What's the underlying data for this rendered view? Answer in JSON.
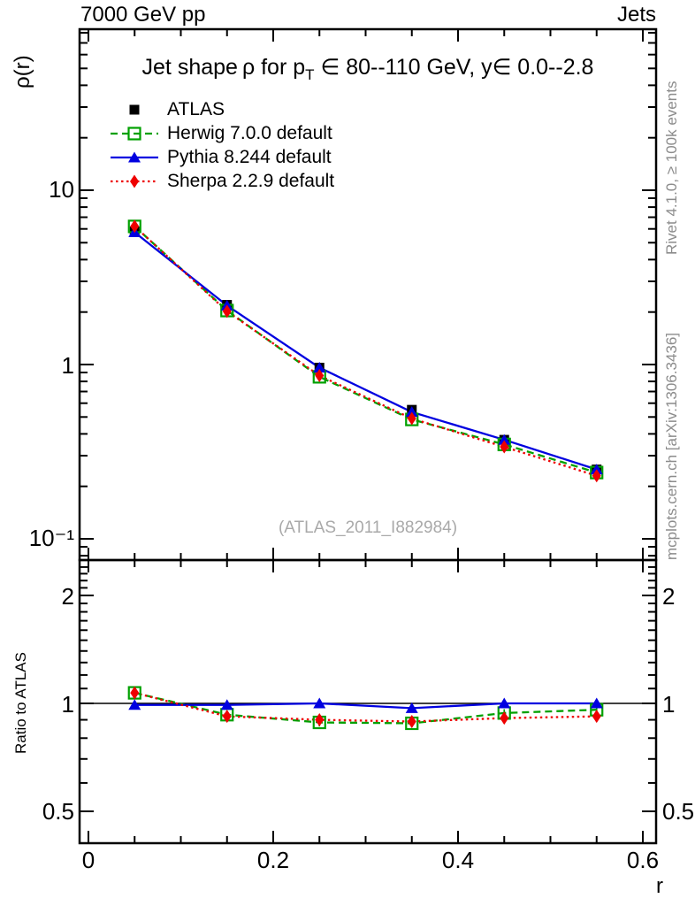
{
  "header": {
    "left": "7000 GeV pp",
    "right": "Jets"
  },
  "title": {
    "pre": "Jet shape ρ for p",
    "sub": "T",
    "post": " ∈ 80--110 GeV, y∈ 0.0--2.8"
  },
  "axes": {
    "main_ylabel": "ρ(r)",
    "main_yticks": [
      {
        "v": 10,
        "label": "10"
      },
      {
        "v": 1,
        "label": "1"
      },
      {
        "v": 0.1,
        "label": "10⁻¹"
      }
    ],
    "ratio_ylabel": "Ratio to ATLAS",
    "ratio_yticks": [
      {
        "v": 2,
        "label": "2"
      },
      {
        "v": 1,
        "label": "1"
      },
      {
        "v": 0.5,
        "label": "0.5"
      }
    ],
    "xlabel": "r",
    "xticks": [
      {
        "v": 0,
        "label": "0"
      },
      {
        "v": 0.2,
        "label": "0.2"
      },
      {
        "v": 0.4,
        "label": "0.4"
      },
      {
        "v": 0.6,
        "label": "0.6"
      }
    ]
  },
  "watermark": "(ATLAS_2011_I882984)",
  "side_notes": {
    "top": "Rivet 4.1.0, ≥ 100k events",
    "bottom": "mcplots.cern.ch [arXiv:1306.3436]"
  },
  "legend": [
    {
      "label": "ATLAS",
      "marker": "square-filled",
      "line": "none",
      "color": "#000000"
    },
    {
      "label": "Herwig 7.0.0 default",
      "marker": "square-open",
      "line": "dashed",
      "color": "#00a000"
    },
    {
      "label": "Pythia 8.244 default",
      "marker": "triangle-filled",
      "line": "solid",
      "color": "#0000e0"
    },
    {
      "label": "Sherpa 2.2.9 default",
      "marker": "diamond-filled",
      "line": "dotted",
      "color": "#ee0000"
    }
  ],
  "chart_data": [
    {
      "type": "line",
      "panel": "main",
      "title": "Jet shape ρ for p_T ∈ 80--110 GeV, y∈ 0.0--2.8",
      "xlabel": "r",
      "ylabel": "ρ(r)",
      "yscale": "log",
      "xlim": [
        0,
        0.614
      ],
      "ylim": [
        0.076,
        84
      ],
      "grid": false,
      "legend_position": "top-left",
      "x": [
        0.05,
        0.15,
        0.25,
        0.35,
        0.45,
        0.55
      ],
      "series": [
        {
          "name": "ATLAS",
          "values": [
            5.8,
            2.2,
            0.96,
            0.55,
            0.37,
            0.25
          ],
          "color": "#000000",
          "marker": "square-filled",
          "line": "none",
          "yerr_frac": 0.05
        },
        {
          "name": "Herwig 7.0.0 default",
          "values": [
            6.2,
            2.04,
            0.85,
            0.484,
            0.348,
            0.24
          ],
          "color": "#00a000",
          "marker": "square-open",
          "line": "dashed",
          "yerr_frac": 0.04
        },
        {
          "name": "Pythia 8.244 default",
          "values": [
            5.74,
            2.18,
            0.96,
            0.534,
            0.37,
            0.25
          ],
          "color": "#0000e0",
          "marker": "triangle-filled",
          "line": "solid",
          "yerr_frac": 0.04
        },
        {
          "name": "Sherpa 2.2.9 default",
          "values": [
            6.21,
            2.02,
            0.864,
            0.49,
            0.337,
            0.23
          ],
          "color": "#ee0000",
          "marker": "diamond-filled",
          "line": "dotted",
          "yerr_frac": 0.06
        }
      ]
    },
    {
      "type": "line",
      "panel": "ratio",
      "ylabel": "Ratio to ATLAS",
      "yscale": "log",
      "xlim": [
        0,
        0.614
      ],
      "ylim": [
        0.407,
        2.51
      ],
      "reference_line": 1,
      "x": [
        0.05,
        0.15,
        0.25,
        0.35,
        0.45,
        0.55
      ],
      "series": [
        {
          "name": "Herwig 7.0.0 default",
          "values": [
            1.07,
            0.93,
            0.885,
            0.88,
            0.94,
            0.96
          ],
          "color": "#00a000",
          "marker": "square-open",
          "line": "dashed",
          "yerr_frac": 0.025
        },
        {
          "name": "Pythia 8.244 default",
          "values": [
            0.99,
            0.99,
            1.0,
            0.97,
            1.0,
            1.0
          ],
          "color": "#0000e0",
          "marker": "triangle-filled",
          "line": "solid",
          "yerr_frac": 0.02
        },
        {
          "name": "Sherpa 2.2.9 default",
          "values": [
            1.07,
            0.92,
            0.9,
            0.89,
            0.91,
            0.92
          ],
          "color": "#ee0000",
          "marker": "diamond-filled",
          "line": "dotted",
          "yerr_frac": 0.035
        }
      ]
    }
  ]
}
